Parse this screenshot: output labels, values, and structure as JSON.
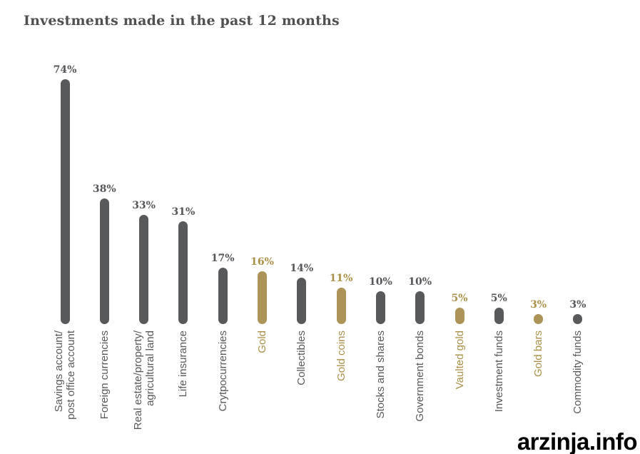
{
  "header": {
    "title": "Investments made in the past 12 months"
  },
  "watermark": {
    "text": "arzinja.info"
  },
  "chart_data": {
    "type": "bar",
    "title": "Investments made in the past 12 months",
    "unit": "%",
    "xlabel": "",
    "ylabel": "",
    "ylim": [
      0,
      80
    ],
    "grid": false,
    "legend": "none",
    "bar_shape": "capsule",
    "orientation": "vertical-bars-rotated-category-labels",
    "palette": {
      "default_bar": "#58595b",
      "gold_bar": "#ac9458",
      "default_text": "#55565a",
      "gold_text": "#aa9049",
      "title_text": "#4f5052"
    },
    "categories": [
      "Savings account/ post office account",
      "Foreign currencies",
      "Real estate/property/ agricultural land",
      "Life insurance",
      "Crytpocurrencies",
      "Gold",
      "Collectibles",
      "Gold coins",
      "Stocks and shares",
      "Government bonds",
      "Vaulted gold",
      "Investment funds",
      "Gold bars",
      "Commodity funds"
    ],
    "values": [
      74,
      38,
      33,
      31,
      17,
      16,
      14,
      11,
      10,
      10,
      5,
      5,
      3,
      3
    ],
    "bars": [
      {
        "category_lines": [
          "Savings account/",
          "post office account"
        ],
        "value": 74,
        "value_label": "74%",
        "color": "default"
      },
      {
        "category_lines": [
          "Foreign currencies"
        ],
        "value": 38,
        "value_label": "38%",
        "color": "default"
      },
      {
        "category_lines": [
          "Real estate/property/",
          "agricultural land"
        ],
        "value": 33,
        "value_label": "33%",
        "color": "default"
      },
      {
        "category_lines": [
          "Life insurance"
        ],
        "value": 31,
        "value_label": "31%",
        "color": "default"
      },
      {
        "category_lines": [
          "Crytpocurrencies"
        ],
        "value": 17,
        "value_label": "17%",
        "color": "default"
      },
      {
        "category_lines": [
          "Gold"
        ],
        "value": 16,
        "value_label": "16%",
        "color": "gold"
      },
      {
        "category_lines": [
          "Collectibles"
        ],
        "value": 14,
        "value_label": "14%",
        "color": "default"
      },
      {
        "category_lines": [
          "Gold coins"
        ],
        "value": 11,
        "value_label": "11%",
        "color": "gold"
      },
      {
        "category_lines": [
          "Stocks and shares"
        ],
        "value": 10,
        "value_label": "10%",
        "color": "default"
      },
      {
        "category_lines": [
          "Government bonds"
        ],
        "value": 10,
        "value_label": "10%",
        "color": "default"
      },
      {
        "category_lines": [
          "Vaulted gold"
        ],
        "value": 5,
        "value_label": "5%",
        "color": "gold"
      },
      {
        "category_lines": [
          "Investment funds"
        ],
        "value": 5,
        "value_label": "5%",
        "color": "default"
      },
      {
        "category_lines": [
          "Gold bars"
        ],
        "value": 3,
        "value_label": "3%",
        "color": "gold"
      },
      {
        "category_lines": [
          "Commodity funds"
        ],
        "value": 3,
        "value_label": "3%",
        "color": "default"
      }
    ]
  }
}
